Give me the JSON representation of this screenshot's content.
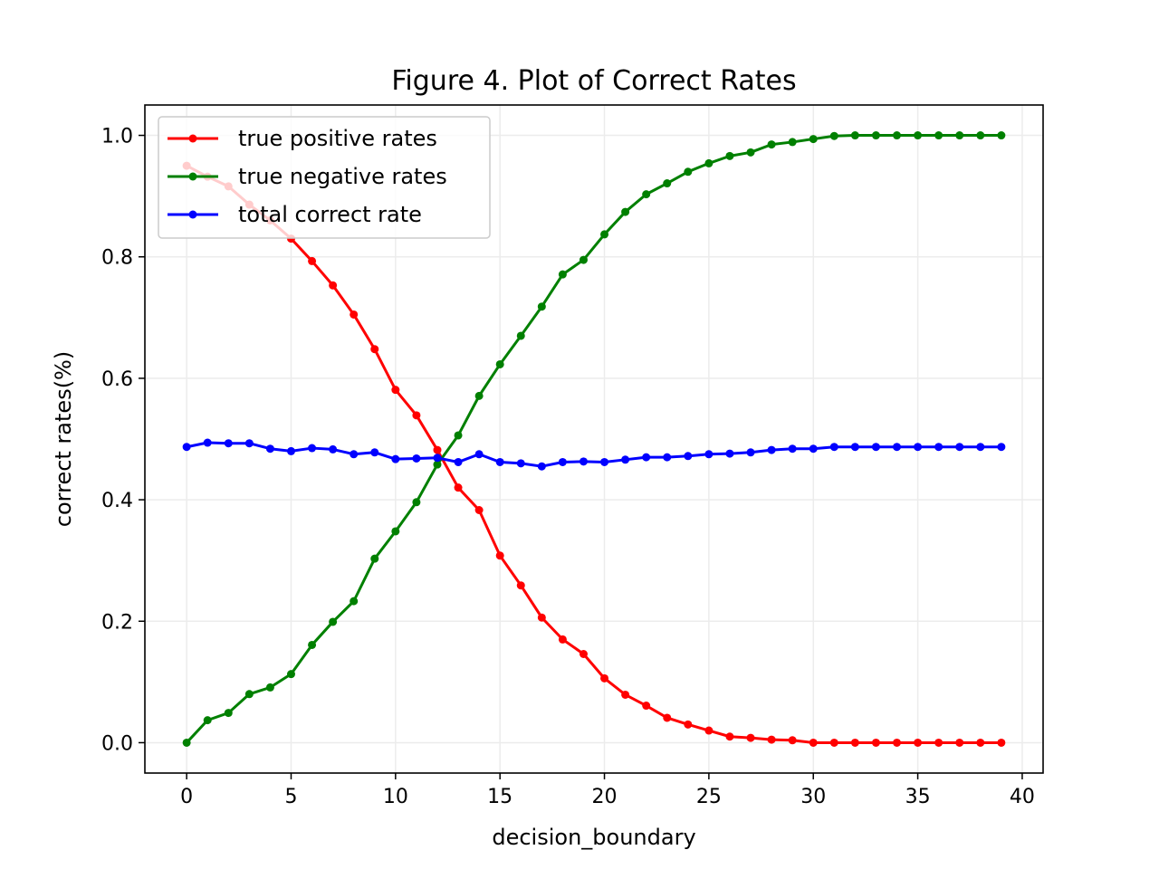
{
  "chart_data": {
    "type": "line",
    "title": "Figure 4. Plot of Correct Rates",
    "xlabel": "decision_boundary",
    "ylabel": "correct rates(%)",
    "xlim": [
      -2,
      41
    ],
    "ylim": [
      -0.05,
      1.05
    ],
    "xticks": [
      0,
      5,
      10,
      15,
      20,
      25,
      30,
      35,
      40
    ],
    "yticks": [
      0.0,
      0.2,
      0.4,
      0.6,
      0.8,
      1.0
    ],
    "xtick_labels": [
      "0",
      "5",
      "10",
      "15",
      "20",
      "25",
      "30",
      "35",
      "40"
    ],
    "ytick_labels": [
      "0.0",
      "0.2",
      "0.4",
      "0.6",
      "0.8",
      "1.0"
    ],
    "grid": true,
    "legend_position": "top-left",
    "x": [
      0,
      1,
      2,
      3,
      4,
      5,
      6,
      7,
      8,
      9,
      10,
      11,
      12,
      13,
      14,
      15,
      16,
      17,
      18,
      19,
      20,
      21,
      22,
      23,
      24,
      25,
      26,
      27,
      28,
      29,
      30,
      31,
      32,
      33,
      34,
      35,
      36,
      37,
      38,
      39
    ],
    "series": [
      {
        "name": "true positive rates",
        "color": "#ff0000",
        "values": [
          0.95,
          0.932,
          0.916,
          0.886,
          0.86,
          0.83,
          0.793,
          0.753,
          0.705,
          0.648,
          0.581,
          0.539,
          0.482,
          0.42,
          0.383,
          0.308,
          0.259,
          0.206,
          0.17,
          0.146,
          0.106,
          0.079,
          0.061,
          0.041,
          0.03,
          0.02,
          0.01,
          0.008,
          0.005,
          0.004,
          0.0,
          0.0,
          0.0,
          0.0,
          0.0,
          0.0,
          0.0,
          0.0,
          0.0,
          0.0
        ]
      },
      {
        "name": "true negative rates",
        "color": "#008000",
        "values": [
          0.0,
          0.037,
          0.049,
          0.08,
          0.091,
          0.113,
          0.161,
          0.199,
          0.233,
          0.303,
          0.348,
          0.396,
          0.458,
          0.506,
          0.571,
          0.623,
          0.67,
          0.718,
          0.771,
          0.795,
          0.837,
          0.874,
          0.903,
          0.921,
          0.94,
          0.954,
          0.966,
          0.972,
          0.985,
          0.989,
          0.994,
          0.999,
          1.0,
          1.0,
          1.0,
          1.0,
          1.0,
          1.0,
          1.0,
          1.0
        ]
      },
      {
        "name": "total correct rate",
        "color": "#0000ff",
        "values": [
          0.487,
          0.494,
          0.493,
          0.493,
          0.484,
          0.48,
          0.485,
          0.483,
          0.475,
          0.478,
          0.467,
          0.468,
          0.469,
          0.462,
          0.475,
          0.462,
          0.46,
          0.455,
          0.462,
          0.463,
          0.462,
          0.466,
          0.47,
          0.47,
          0.472,
          0.475,
          0.476,
          0.478,
          0.482,
          0.484,
          0.484,
          0.487,
          0.487,
          0.487,
          0.487,
          0.487,
          0.487,
          0.487,
          0.487,
          0.487
        ]
      }
    ]
  }
}
